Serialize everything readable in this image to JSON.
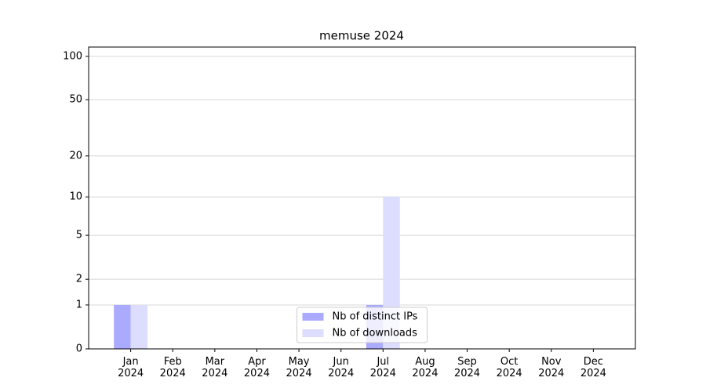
{
  "chart_data": {
    "type": "bar",
    "title": "memuse 2024",
    "categories": [
      "Jan\n2024",
      "Feb\n2024",
      "Mar\n2024",
      "Apr\n2024",
      "May\n2024",
      "Jun\n2024",
      "Jul\n2024",
      "Aug\n2024",
      "Sep\n2024",
      "Oct\n2024",
      "Nov\n2024",
      "Dec\n2024"
    ],
    "series": [
      {
        "name": "Nb of distinct IPs",
        "color": "#aaaaff",
        "values": [
          1,
          0,
          0,
          0,
          0,
          0,
          1,
          0,
          0,
          0,
          0,
          0
        ]
      },
      {
        "name": "Nb of downloads",
        "color": "#ddddff",
        "values": [
          1,
          0,
          0,
          0,
          0,
          0,
          10,
          0,
          0,
          0,
          0,
          0
        ]
      }
    ],
    "yscale": "log1p",
    "ylim": [
      0,
      116
    ],
    "yticks": [
      0,
      1,
      2,
      5,
      10,
      20,
      50,
      100
    ],
    "grid": true,
    "legend": "lower center"
  }
}
